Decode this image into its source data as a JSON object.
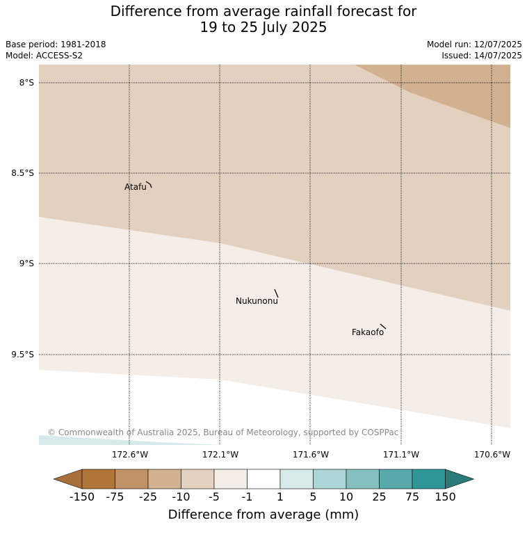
{
  "title": {
    "line1": "Difference from average rainfall forecast for",
    "line2": "19 to 25 July 2025"
  },
  "meta": {
    "base_period": "Base period: 1981-2018",
    "model": "Model: ACCESS-S2",
    "model_run": "Model run: 12/07/2025",
    "issued": "Issued: 14/07/2025"
  },
  "map": {
    "lat_ticks": [
      "8°S",
      "8.5°S",
      "9°S",
      "9.5°S"
    ],
    "lon_ticks": [
      "172.6°W",
      "172.1°W",
      "171.6°W",
      "171.1°W",
      "170.6°W"
    ],
    "places": [
      "Atafu",
      "Nukunonu",
      "Fakaofo"
    ],
    "copyright": "© Commonwealth of Australia 2025, Bureau of Meteorology, supported by COSPPac",
    "region_colors": {
      "dry_strong": "#d2b190",
      "dry": "#e3d0bf",
      "slight_dry": "#f4ede8",
      "neutral": "#ffffff",
      "slight_wet": "#d6eae9"
    }
  },
  "colorbar": {
    "labels": [
      "-150",
      "-75",
      "-25",
      "-10",
      "-5",
      "-1",
      "1",
      "5",
      "10",
      "25",
      "75",
      "150"
    ],
    "colors": [
      "#a86f3a",
      "#b07538",
      "#c19265",
      "#d2b190",
      "#e5d1bf",
      "#f5ede8",
      "#ffffff",
      "#d6eae9",
      "#acd5d6",
      "#84c0c0",
      "#58a9ab",
      "#2e9796",
      "#2c7a77"
    ],
    "title": "Difference from average (mm)"
  }
}
